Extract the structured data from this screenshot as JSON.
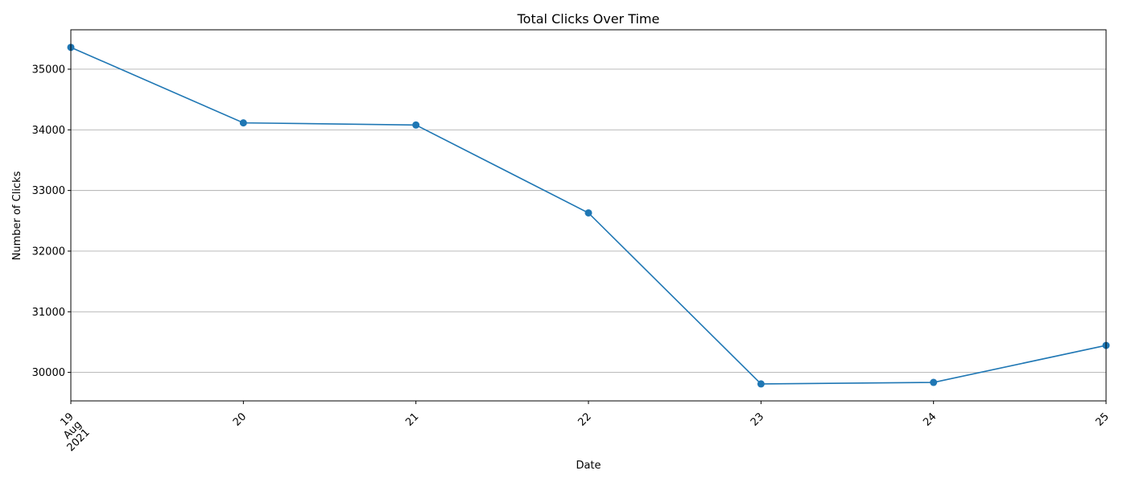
{
  "chart_data": {
    "type": "line",
    "title": "Total Clicks Over Time",
    "xlabel": "Date",
    "ylabel": "Number of Clicks",
    "x": [
      "2021-08-19",
      "2021-08-20",
      "2021-08-21",
      "2021-08-22",
      "2021-08-23",
      "2021-08-24",
      "2021-08-25"
    ],
    "x_tick_labels": [
      [
        "19",
        "Aug",
        "2021"
      ],
      [
        "20"
      ],
      [
        "21"
      ],
      [
        "22"
      ],
      [
        "23"
      ],
      [
        "24"
      ],
      [
        "25"
      ]
    ],
    "series": [
      {
        "values": [
          35360,
          34115,
          34080,
          32630,
          29810,
          29835,
          30445
        ],
        "color": "#1f77b4",
        "marker": "circle"
      }
    ],
    "yticks": [
      30000,
      31000,
      32000,
      33000,
      34000,
      35000
    ],
    "ylim": [
      29530,
      35650
    ],
    "grid": "y-major",
    "x_tick_rotation": "45 degrees"
  }
}
